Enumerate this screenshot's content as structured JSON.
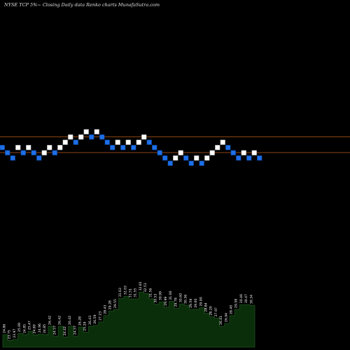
{
  "chart_data": {
    "type": "renko",
    "title": "NYSE TCP 5%~  Closing Daily data  Renko  charts MunafaSutra.com",
    "colors": {
      "background": "#000000",
      "up_brick": "#ffffff",
      "down_brick": "#1e6fe8",
      "support_line": "#8b4513",
      "volume_fill": "#0a2e0a",
      "volume_stroke": "#1f4d1f"
    },
    "reference_lines": [
      25.3,
      24.4
    ],
    "bricks": [
      {
        "dir": "down",
        "value": 24.7
      },
      {
        "dir": "down",
        "value": 24.4
      },
      {
        "dir": "down",
        "value": 24.1
      },
      {
        "dir": "up",
        "value": 24.7
      },
      {
        "dir": "down",
        "value": 24.4
      },
      {
        "dir": "up",
        "value": 24.7
      },
      {
        "dir": "down",
        "value": 24.4
      },
      {
        "dir": "down",
        "value": 24.1
      },
      {
        "dir": "up",
        "value": 24.4
      },
      {
        "dir": "up",
        "value": 24.7
      },
      {
        "dir": "down",
        "value": 24.4
      },
      {
        "dir": "up",
        "value": 24.7
      },
      {
        "dir": "up",
        "value": 25.0
      },
      {
        "dir": "up",
        "value": 25.3
      },
      {
        "dir": "down",
        "value": 25.0
      },
      {
        "dir": "up",
        "value": 25.3
      },
      {
        "dir": "up",
        "value": 25.6
      },
      {
        "dir": "down",
        "value": 25.3
      },
      {
        "dir": "up",
        "value": 25.6
      },
      {
        "dir": "down",
        "value": 25.3
      },
      {
        "dir": "down",
        "value": 25.0
      },
      {
        "dir": "down",
        "value": 24.7
      },
      {
        "dir": "up",
        "value": 25.0
      },
      {
        "dir": "down",
        "value": 24.7
      },
      {
        "dir": "up",
        "value": 25.0
      },
      {
        "dir": "down",
        "value": 24.7
      },
      {
        "dir": "up",
        "value": 25.0
      },
      {
        "dir": "up",
        "value": 25.3
      },
      {
        "dir": "down",
        "value": 25.0
      },
      {
        "dir": "down",
        "value": 24.7
      },
      {
        "dir": "down",
        "value": 24.4
      },
      {
        "dir": "down",
        "value": 24.1
      },
      {
        "dir": "down",
        "value": 23.8
      },
      {
        "dir": "up",
        "value": 24.1
      },
      {
        "dir": "up",
        "value": 24.4
      },
      {
        "dir": "down",
        "value": 24.1
      },
      {
        "dir": "down",
        "value": 23.8
      },
      {
        "dir": "up",
        "value": 24.1
      },
      {
        "dir": "down",
        "value": 23.8
      },
      {
        "dir": "up",
        "value": 24.1
      },
      {
        "dir": "up",
        "value": 24.4
      },
      {
        "dir": "up",
        "value": 24.7
      },
      {
        "dir": "up",
        "value": 25.0
      },
      {
        "dir": "down",
        "value": 24.7
      },
      {
        "dir": "down",
        "value": 24.4
      },
      {
        "dir": "down",
        "value": 24.1
      },
      {
        "dir": "up",
        "value": 24.4
      },
      {
        "dir": "down",
        "value": 24.1
      },
      {
        "dir": "up",
        "value": 24.4
      },
      {
        "dir": "down",
        "value": 24.1
      }
    ],
    "volume_labels": [
      "24.86",
      "23.75",
      "23.97",
      "25.09",
      "24.85",
      "25.47",
      "24.80",
      "24.96",
      "24.85",
      "26.42",
      "24.57",
      "26.42",
      "24.42",
      "26.42",
      "24.57",
      "26.28",
      "25.29",
      "26.43",
      "26.59",
      "27.23",
      "28.43",
      "29.28",
      "29.55",
      "31.63",
      "32.03",
      "31.51",
      "31.55",
      "32.81",
      "32.53",
      "31.56",
      "30.53",
      "30.99",
      "29.99",
      "31.06",
      "29.78",
      "30.60",
      "30.36",
      "29.59",
      "29.60",
      "29.90",
      "28.84",
      "28.20",
      "27.97",
      "26.41",
      "26.94",
      "28.40",
      "29.58",
      "30.46",
      "30.47",
      "30.34"
    ],
    "volume_values": [
      24.86,
      23.75,
      23.97,
      25.09,
      24.85,
      25.47,
      24.8,
      24.96,
      24.85,
      26.42,
      24.57,
      26.42,
      24.42,
      26.42,
      24.57,
      26.28,
      25.29,
      26.43,
      26.59,
      27.23,
      28.43,
      29.28,
      29.55,
      31.63,
      32.03,
      31.51,
      31.55,
      32.81,
      32.53,
      31.56,
      30.53,
      30.99,
      29.99,
      31.06,
      29.78,
      30.6,
      30.36,
      29.59,
      29.6,
      29.9,
      28.84,
      28.2,
      27.97,
      26.41,
      26.94,
      28.4,
      29.58,
      30.46,
      30.47,
      30.34
    ]
  }
}
